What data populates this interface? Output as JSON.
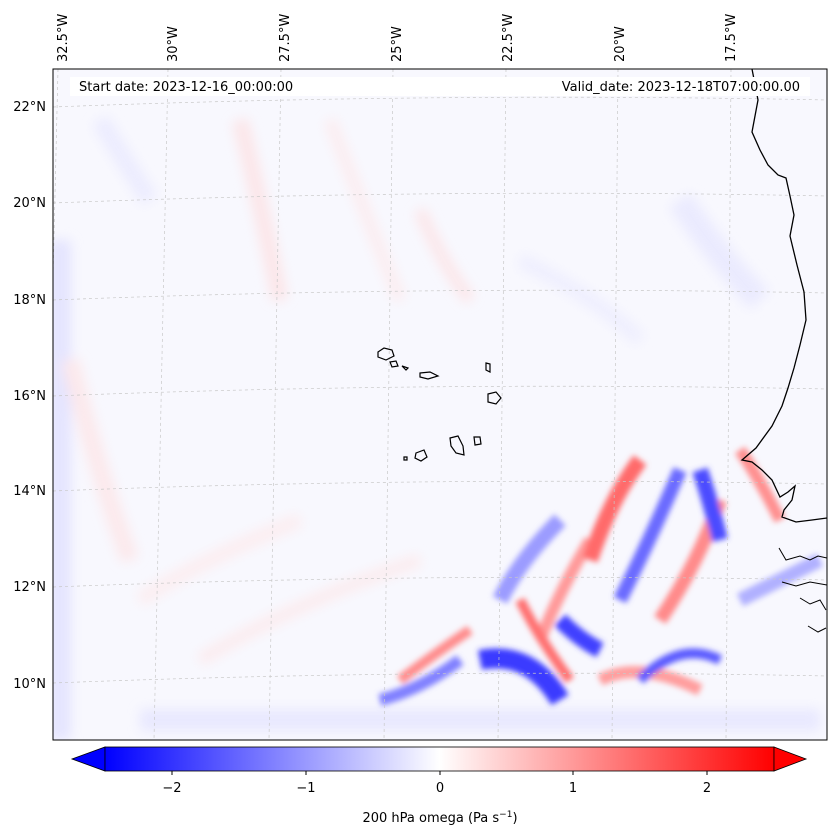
{
  "header": {
    "start_date": "Start date: 2023-12-16_00:00:00",
    "valid_date": "Valid_date: 2023-12-18T07:00:00.00"
  },
  "map": {
    "lon_labels": [
      "32.5°W",
      "30°W",
      "27.5°W",
      "25°W",
      "22.5°W",
      "20°W",
      "17.5°W"
    ],
    "lat_labels": [
      "22°N",
      "20°N",
      "18°N",
      "16°N",
      "14°N",
      "12°N",
      "10°N"
    ],
    "gridlines": "dashed",
    "field_colors": {
      "negative": "#0000ff",
      "neutral": "#ffffff",
      "positive": "#ff0000"
    }
  },
  "colorbar": {
    "ticks": [
      "−2",
      "−1",
      "0",
      "1",
      "2"
    ],
    "range": [
      -2.75,
      2.75
    ],
    "extend": "both",
    "label": "200 hPa omega (Pa s",
    "label_sup": "−1",
    "label_end": ")"
  }
}
